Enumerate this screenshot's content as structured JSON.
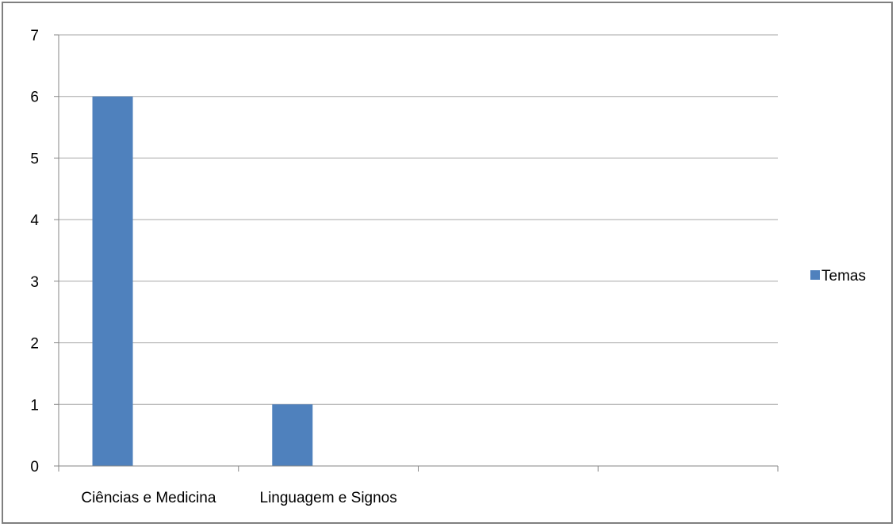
{
  "chart_data": {
    "type": "bar",
    "categories": [
      "Ciências e Medicina",
      "Linguagem e Signos",
      "",
      ""
    ],
    "series": [
      {
        "name": "Temas",
        "values": [
          6,
          1,
          0,
          0
        ]
      }
    ],
    "ylim": [
      0,
      7
    ],
    "yticks": [
      "0",
      "1",
      "2",
      "3",
      "4",
      "5",
      "6",
      "7"
    ],
    "grid": true,
    "legend_position": "right",
    "colors": {
      "bar": "#4f81bd",
      "grid": "#a6a6a6",
      "axis": "#868686"
    }
  }
}
